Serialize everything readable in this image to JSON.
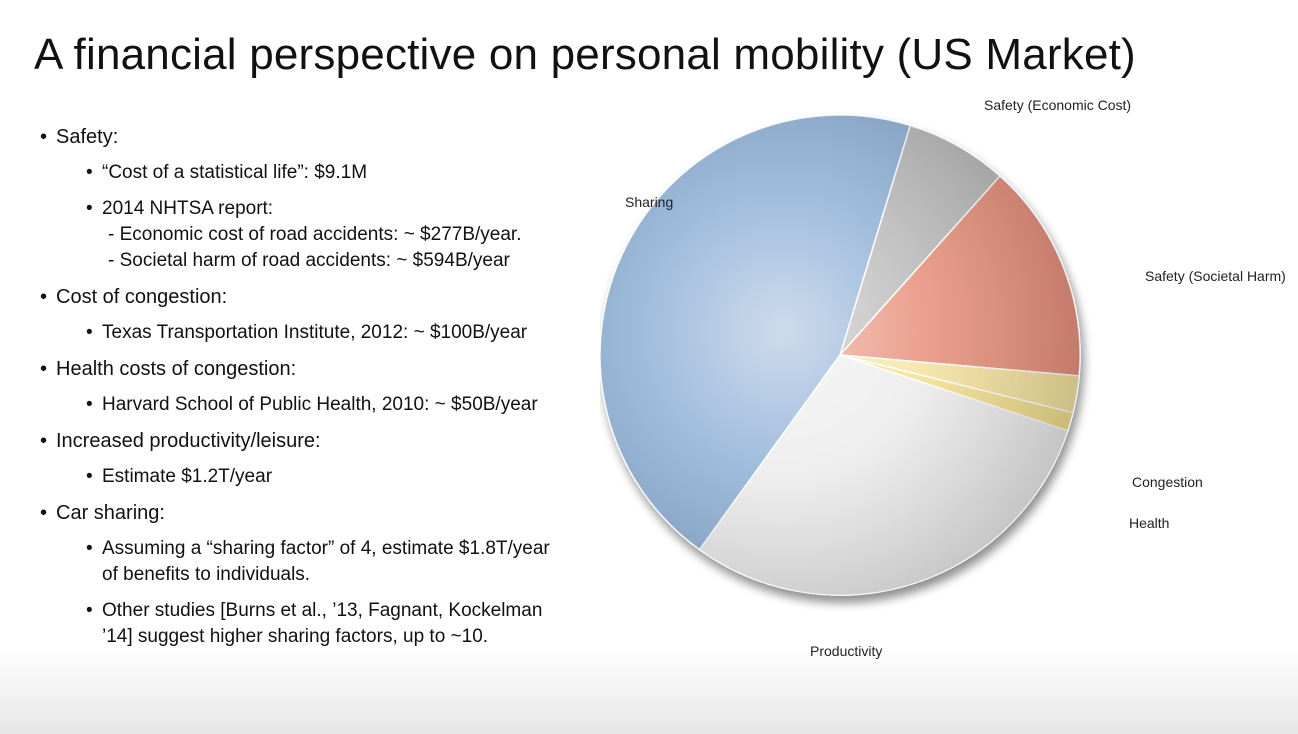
{
  "title": "A financial perspective on personal mobility  (US Market)",
  "bullets": {
    "safety": {
      "label": "Safety:",
      "stat_life": "“Cost of a statistical life”: $9.1M",
      "nhtsa": "2014 NHTSA report:",
      "economic": "- Economic cost of road accidents: ~ $277B/year.",
      "societal": "- Societal harm of road accidents: ~ $594B/year"
    },
    "congestion": {
      "label": "Cost of congestion:",
      "tti": "Texas Transportation Institute, 2012: ~ $100B/year"
    },
    "health": {
      "label": "Health costs of congestion:",
      "harvard": "Harvard School of Public Health, 2010: ~ $50B/year"
    },
    "productivity": {
      "label": "Increased productivity/leisure:",
      "estimate": "Estimate $1.2T/year"
    },
    "sharing": {
      "label": "Car sharing:",
      "factor_line1": "Assuming a “sharing factor” of 4, estimate $1.8T/year",
      "factor_line2": "of benefits to individuals.",
      "studies_line1": "Other studies [Burns et al., ’13, Fagnant, Kockelman",
      "studies_line2": "’14] suggest higher sharing factors, up to ~10."
    }
  },
  "chart_data": {
    "type": "pie",
    "title": "",
    "start_angle_deg": -73,
    "direction": "clockwise",
    "units": "$B/year",
    "slices": [
      {
        "label": "Safety (Economic Cost)",
        "value": 277,
        "color": "#b9b9b9"
      },
      {
        "label": "Safety (Societal Harm)",
        "value": 594,
        "color": "#e8907c"
      },
      {
        "label": "Congestion",
        "value": 100,
        "color": "#f6e3a0"
      },
      {
        "label": "Health",
        "value": 50,
        "color": "#f3e08e"
      },
      {
        "label": "Productivity",
        "value": 1200,
        "color": "#ececec"
      },
      {
        "label": "Sharing",
        "value": 1800,
        "color": "#8fb0d6"
      }
    ]
  }
}
